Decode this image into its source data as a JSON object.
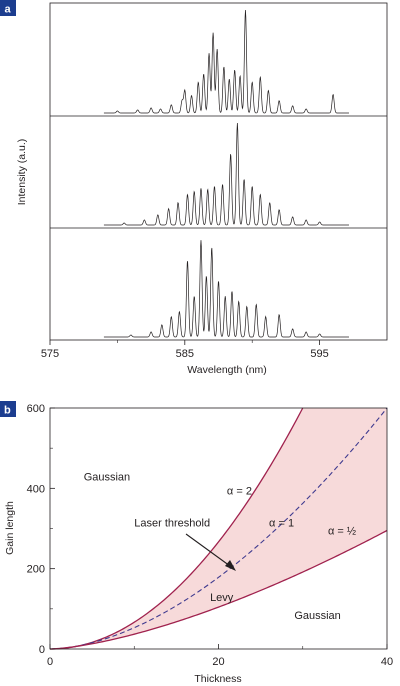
{
  "chart_data": [
    {
      "type": "line",
      "panel_label": "a",
      "xlabel": "Wavelength (nm)",
      "ylabel": "Intensity (a.u.)",
      "xlim": [
        575,
        600
      ],
      "x_ticks": [
        "575",
        "585",
        "595"
      ],
      "x_tick_values": [
        575,
        585,
        595
      ],
      "stacked_panels": 3,
      "series": [
        {
          "peaks": [
            {
              "x": 580.0,
              "y": 0.02
            },
            {
              "x": 581.5,
              "y": 0.03
            },
            {
              "x": 582.5,
              "y": 0.05
            },
            {
              "x": 583.2,
              "y": 0.04
            },
            {
              "x": 584.0,
              "y": 0.08
            },
            {
              "x": 584.8,
              "y": 0.12
            },
            {
              "x": 585.0,
              "y": 0.22
            },
            {
              "x": 585.5,
              "y": 0.17
            },
            {
              "x": 586.0,
              "y": 0.3
            },
            {
              "x": 586.4,
              "y": 0.38
            },
            {
              "x": 586.8,
              "y": 0.58
            },
            {
              "x": 587.1,
              "y": 0.78
            },
            {
              "x": 587.4,
              "y": 0.62
            },
            {
              "x": 587.9,
              "y": 0.45
            },
            {
              "x": 588.3,
              "y": 0.33
            },
            {
              "x": 588.7,
              "y": 0.42
            },
            {
              "x": 589.1,
              "y": 0.36
            },
            {
              "x": 589.5,
              "y": 1.0
            },
            {
              "x": 590.0,
              "y": 0.3
            },
            {
              "x": 590.6,
              "y": 0.35
            },
            {
              "x": 591.2,
              "y": 0.22
            },
            {
              "x": 592.0,
              "y": 0.12
            },
            {
              "x": 593.0,
              "y": 0.07
            },
            {
              "x": 594.0,
              "y": 0.04
            },
            {
              "x": 596.0,
              "y": 0.18
            }
          ]
        },
        {
          "peaks": [
            {
              "x": 580.5,
              "y": 0.02
            },
            {
              "x": 582.0,
              "y": 0.05
            },
            {
              "x": 583.0,
              "y": 0.1
            },
            {
              "x": 583.8,
              "y": 0.16
            },
            {
              "x": 584.5,
              "y": 0.22
            },
            {
              "x": 585.2,
              "y": 0.3
            },
            {
              "x": 585.7,
              "y": 0.33
            },
            {
              "x": 586.2,
              "y": 0.36
            },
            {
              "x": 586.7,
              "y": 0.35
            },
            {
              "x": 587.2,
              "y": 0.38
            },
            {
              "x": 587.8,
              "y": 0.4
            },
            {
              "x": 588.4,
              "y": 0.7
            },
            {
              "x": 588.9,
              "y": 1.0
            },
            {
              "x": 589.4,
              "y": 0.45
            },
            {
              "x": 590.0,
              "y": 0.38
            },
            {
              "x": 590.6,
              "y": 0.3
            },
            {
              "x": 591.3,
              "y": 0.22
            },
            {
              "x": 592.0,
              "y": 0.15
            },
            {
              "x": 593.0,
              "y": 0.08
            },
            {
              "x": 594.0,
              "y": 0.05
            },
            {
              "x": 595.0,
              "y": 0.03
            }
          ]
        },
        {
          "peaks": [
            {
              "x": 581.0,
              "y": 0.02
            },
            {
              "x": 582.5,
              "y": 0.05
            },
            {
              "x": 583.3,
              "y": 0.12
            },
            {
              "x": 584.0,
              "y": 0.2
            },
            {
              "x": 584.6,
              "y": 0.25
            },
            {
              "x": 585.2,
              "y": 0.75
            },
            {
              "x": 585.7,
              "y": 0.4
            },
            {
              "x": 586.2,
              "y": 0.95
            },
            {
              "x": 586.6,
              "y": 0.6
            },
            {
              "x": 587.0,
              "y": 0.88
            },
            {
              "x": 587.5,
              "y": 0.55
            },
            {
              "x": 588.0,
              "y": 0.4
            },
            {
              "x": 588.5,
              "y": 0.45
            },
            {
              "x": 589.0,
              "y": 0.35
            },
            {
              "x": 589.6,
              "y": 0.3
            },
            {
              "x": 590.3,
              "y": 0.32
            },
            {
              "x": 591.0,
              "y": 0.2
            },
            {
              "x": 592.0,
              "y": 0.22
            },
            {
              "x": 593.0,
              "y": 0.08
            },
            {
              "x": 594.0,
              "y": 0.05
            },
            {
              "x": 595.0,
              "y": 0.03
            }
          ]
        }
      ]
    },
    {
      "type": "line",
      "panel_label": "b",
      "xlabel": "Thickness",
      "ylabel": "Gain length",
      "xlim": [
        0,
        40
      ],
      "ylim": [
        0,
        600
      ],
      "x_ticks": [
        "0",
        "20",
        "40"
      ],
      "x_tick_values": [
        0,
        20,
        40
      ],
      "y_ticks": [
        "0",
        "200",
        "400",
        "600"
      ],
      "y_tick_values": [
        0,
        200,
        400,
        600
      ],
      "series": [
        {
          "name": "α = 2",
          "style": "solid",
          "color": "#a0224e",
          "x": [
            0,
            5,
            10,
            15,
            20,
            25,
            30
          ],
          "y": [
            0,
            17,
            67,
            150,
            267,
            417,
            600
          ]
        },
        {
          "name": "α = 1",
          "style": "dashed",
          "color": "#3f3a8f",
          "x": [
            0,
            5,
            10,
            15,
            20,
            25,
            30,
            35,
            40
          ],
          "y": [
            0,
            15,
            57,
            115,
            190,
            280,
            380,
            480,
            600
          ]
        },
        {
          "name": "α = ½",
          "style": "solid",
          "color": "#a0224e",
          "x": [
            0,
            5,
            10,
            15,
            20,
            25,
            30,
            35,
            40
          ],
          "y": [
            0,
            12,
            35,
            62,
            95,
            135,
            180,
            235,
            295
          ]
        }
      ],
      "fill_between_color": "#f7dada",
      "annotations": [
        {
          "text": "Gaussian",
          "x": 4,
          "y": 420
        },
        {
          "text": "Gaussian",
          "x": 29,
          "y": 75
        },
        {
          "text": "Levy",
          "x": 19,
          "y": 120
        },
        {
          "text": "Laser threshold",
          "x": 10,
          "y": 305
        },
        {
          "text": "α = 2",
          "x": 21,
          "y": 385
        },
        {
          "text": "α = 1",
          "x": 26,
          "y": 305
        },
        {
          "text": "α = ½",
          "x": 33,
          "y": 285
        }
      ]
    }
  ]
}
